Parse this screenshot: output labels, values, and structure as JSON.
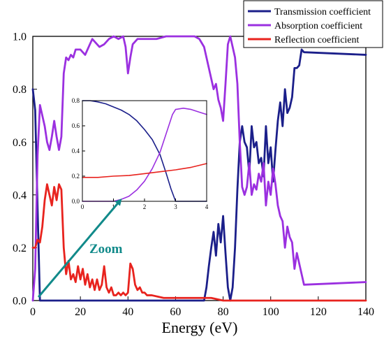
{
  "chart_data": [
    {
      "type": "line",
      "title": "",
      "xlabel": "Energy (eV)",
      "ylabel": "",
      "xlim": [
        0,
        140
      ],
      "ylim": [
        0,
        1.0
      ],
      "x_ticks": [
        0,
        20,
        40,
        60,
        80,
        100,
        120,
        140
      ],
      "y_ticks": [
        0.0,
        0.2,
        0.4,
        0.6,
        0.8,
        1.0
      ],
      "x_tick_labels": [
        "0",
        "20",
        "40",
        "60",
        "80",
        "100",
        "120",
        "140"
      ],
      "y_tick_labels": [
        "0.0",
        "0.2",
        "0.4",
        "0.6",
        "0.8",
        "1.0"
      ],
      "legend_position": "top-right",
      "grid": false,
      "series": [
        {
          "name": "Transmission coefficient",
          "color": "#1b1f8a",
          "points": [
            [
              0,
              0.8
            ],
            [
              1,
              0.72
            ],
            [
              2,
              0.35
            ],
            [
              3,
              0.0
            ],
            [
              10,
              0.0
            ],
            [
              20,
              0.0
            ],
            [
              40,
              0.0
            ],
            [
              60,
              0.0
            ],
            [
              72,
              0.0
            ],
            [
              73,
              0.05
            ],
            [
              74,
              0.13
            ],
            [
              75,
              0.2
            ],
            [
              76,
              0.26
            ],
            [
              77,
              0.17
            ],
            [
              78,
              0.29
            ],
            [
              79,
              0.22
            ],
            [
              80,
              0.32
            ],
            [
              81,
              0.18
            ],
            [
              82,
              0.05
            ],
            [
              83,
              0.0
            ],
            [
              84,
              0.05
            ],
            [
              85,
              0.2
            ],
            [
              86,
              0.42
            ],
            [
              87,
              0.6
            ],
            [
              88,
              0.66
            ],
            [
              89,
              0.6
            ],
            [
              90,
              0.58
            ],
            [
              91,
              0.48
            ],
            [
              92,
              0.66
            ],
            [
              93,
              0.58
            ],
            [
              94,
              0.6
            ],
            [
              95,
              0.52
            ],
            [
              96,
              0.54
            ],
            [
              97,
              0.47
            ],
            [
              98,
              0.66
            ],
            [
              99,
              0.52
            ],
            [
              100,
              0.58
            ],
            [
              101,
              0.45
            ],
            [
              102,
              0.57
            ],
            [
              103,
              0.68
            ],
            [
              104,
              0.75
            ],
            [
              105,
              0.66
            ],
            [
              106,
              0.8
            ],
            [
              107,
              0.71
            ],
            [
              108,
              0.73
            ],
            [
              109,
              0.77
            ],
            [
              110,
              0.88
            ],
            [
              111,
              0.88
            ],
            [
              112,
              0.89
            ],
            [
              113,
              0.95
            ],
            [
              114,
              0.94
            ],
            [
              140,
              0.93
            ]
          ]
        },
        {
          "name": "Absorption coefficient",
          "color": "#9b30e0",
          "points": [
            [
              0,
              0.0
            ],
            [
              1,
              0.12
            ],
            [
              2,
              0.55
            ],
            [
              3,
              0.74
            ],
            [
              4,
              0.7
            ],
            [
              5,
              0.66
            ],
            [
              6,
              0.6
            ],
            [
              7,
              0.57
            ],
            [
              8,
              0.62
            ],
            [
              9,
              0.68
            ],
            [
              10,
              0.62
            ],
            [
              11,
              0.57
            ],
            [
              12,
              0.62
            ],
            [
              13,
              0.86
            ],
            [
              14,
              0.92
            ],
            [
              15,
              0.91
            ],
            [
              16,
              0.93
            ],
            [
              17,
              0.92
            ],
            [
              18,
              0.95
            ],
            [
              20,
              0.95
            ],
            [
              22,
              0.93
            ],
            [
              24,
              0.97
            ],
            [
              25,
              0.99
            ],
            [
              26,
              0.98
            ],
            [
              28,
              0.96
            ],
            [
              30,
              0.97
            ],
            [
              32,
              0.99
            ],
            [
              34,
              1.0
            ],
            [
              36,
              0.99
            ],
            [
              38,
              1.0
            ],
            [
              39,
              0.96
            ],
            [
              40,
              0.86
            ],
            [
              41,
              0.92
            ],
            [
              42,
              0.97
            ],
            [
              44,
              0.99
            ],
            [
              48,
              0.99
            ],
            [
              52,
              0.99
            ],
            [
              56,
              1.0
            ],
            [
              60,
              1.0
            ],
            [
              64,
              1.0
            ],
            [
              68,
              1.0
            ],
            [
              70,
              0.99
            ],
            [
              72,
              0.96
            ],
            [
              73,
              0.92
            ],
            [
              74,
              0.88
            ],
            [
              75,
              0.84
            ],
            [
              76,
              0.8
            ],
            [
              77,
              0.82
            ],
            [
              78,
              0.76
            ],
            [
              79,
              0.73
            ],
            [
              80,
              0.68
            ],
            [
              81,
              0.82
            ],
            [
              82,
              0.97
            ],
            [
              83,
              1.0
            ],
            [
              84,
              0.96
            ],
            [
              85,
              0.92
            ],
            [
              86,
              0.82
            ],
            [
              87,
              0.6
            ],
            [
              88,
              0.43
            ],
            [
              89,
              0.4
            ],
            [
              90,
              0.43
            ],
            [
              91,
              0.52
            ],
            [
              92,
              0.4
            ],
            [
              93,
              0.44
            ],
            [
              94,
              0.42
            ],
            [
              95,
              0.48
            ],
            [
              96,
              0.45
            ],
            [
              97,
              0.52
            ],
            [
              98,
              0.36
            ],
            [
              99,
              0.45
            ],
            [
              100,
              0.4
            ],
            [
              101,
              0.5
            ],
            [
              102,
              0.44
            ],
            [
              103,
              0.36
            ],
            [
              104,
              0.32
            ],
            [
              105,
              0.3
            ],
            [
              106,
              0.2
            ],
            [
              107,
              0.28
            ],
            [
              108,
              0.24
            ],
            [
              109,
              0.22
            ],
            [
              110,
              0.12
            ],
            [
              111,
              0.18
            ],
            [
              112,
              0.14
            ],
            [
              113,
              0.1
            ],
            [
              114,
              0.06
            ],
            [
              140,
              0.07
            ]
          ]
        },
        {
          "name": "Reflection coefficient",
          "color": "#e8231e",
          "points": [
            [
              0,
              0.2
            ],
            [
              1,
              0.2
            ],
            [
              2,
              0.23
            ],
            [
              3,
              0.22
            ],
            [
              4,
              0.28
            ],
            [
              5,
              0.38
            ],
            [
              6,
              0.44
            ],
            [
              7,
              0.4
            ],
            [
              8,
              0.36
            ],
            [
              9,
              0.43
            ],
            [
              10,
              0.38
            ],
            [
              11,
              0.44
            ],
            [
              12,
              0.42
            ],
            [
              13,
              0.2
            ],
            [
              14,
              0.1
            ],
            [
              15,
              0.15
            ],
            [
              16,
              0.08
            ],
            [
              17,
              0.1
            ],
            [
              18,
              0.07
            ],
            [
              19,
              0.13
            ],
            [
              20,
              0.08
            ],
            [
              21,
              0.12
            ],
            [
              22,
              0.06
            ],
            [
              23,
              0.1
            ],
            [
              24,
              0.05
            ],
            [
              25,
              0.08
            ],
            [
              26,
              0.04
            ],
            [
              27,
              0.08
            ],
            [
              28,
              0.04
            ],
            [
              29,
              0.06
            ],
            [
              30,
              0.13
            ],
            [
              31,
              0.05
            ],
            [
              32,
              0.03
            ],
            [
              33,
              0.05
            ],
            [
              34,
              0.02
            ],
            [
              35,
              0.02
            ],
            [
              36,
              0.03
            ],
            [
              37,
              0.02
            ],
            [
              38,
              0.03
            ],
            [
              39,
              0.02
            ],
            [
              40,
              0.03
            ],
            [
              41,
              0.14
            ],
            [
              42,
              0.12
            ],
            [
              43,
              0.06
            ],
            [
              44,
              0.04
            ],
            [
              45,
              0.05
            ],
            [
              46,
              0.03
            ],
            [
              47,
              0.03
            ],
            [
              48,
              0.02
            ],
            [
              50,
              0.02
            ],
            [
              55,
              0.01
            ],
            [
              60,
              0.01
            ],
            [
              65,
              0.01
            ],
            [
              70,
              0.01
            ],
            [
              75,
              0.01
            ],
            [
              80,
              0.0
            ],
            [
              100,
              0.0
            ],
            [
              140,
              0.0
            ]
          ]
        }
      ]
    },
    {
      "type": "line",
      "title": "",
      "xlabel": "",
      "ylabel": "",
      "xlim": [
        0,
        4
      ],
      "ylim": [
        0,
        0.8
      ],
      "x_ticks": [
        0,
        1,
        2,
        3,
        4
      ],
      "y_ticks": [
        0.0,
        0.2,
        0.4,
        0.6,
        0.8
      ],
      "x_tick_labels": [
        "0",
        "1",
        "2",
        "3",
        "4"
      ],
      "y_tick_labels": [
        "0.0",
        "0.2",
        "0.4",
        "0.6",
        "0.8"
      ],
      "series": [
        {
          "color": "#1b1f8a",
          "points": [
            [
              0,
              0.8
            ],
            [
              0.25,
              0.8
            ],
            [
              0.5,
              0.79
            ],
            [
              0.75,
              0.775
            ],
            [
              1.0,
              0.75
            ],
            [
              1.25,
              0.725
            ],
            [
              1.5,
              0.69
            ],
            [
              1.75,
              0.64
            ],
            [
              2.0,
              0.57
            ],
            [
              2.25,
              0.49
            ],
            [
              2.5,
              0.37
            ],
            [
              2.7,
              0.22
            ],
            [
              2.85,
              0.1
            ],
            [
              3.0,
              0.0
            ],
            [
              4.0,
              0.0
            ]
          ]
        },
        {
          "color": "#9b30e0",
          "points": [
            [
              0,
              0.0
            ],
            [
              1.0,
              0.0
            ],
            [
              1.25,
              0.015
            ],
            [
              1.5,
              0.04
            ],
            [
              1.75,
              0.09
            ],
            [
              2.0,
              0.16
            ],
            [
              2.25,
              0.26
            ],
            [
              2.5,
              0.39
            ],
            [
              2.7,
              0.54
            ],
            [
              2.9,
              0.69
            ],
            [
              3.0,
              0.73
            ],
            [
              3.25,
              0.74
            ],
            [
              3.5,
              0.73
            ],
            [
              3.75,
              0.71
            ],
            [
              4.0,
              0.69
            ]
          ]
        },
        {
          "color": "#e8231e",
          "points": [
            [
              0,
              0.19
            ],
            [
              0.5,
              0.19
            ],
            [
              1.0,
              0.2
            ],
            [
              1.5,
              0.205
            ],
            [
              2.0,
              0.22
            ],
            [
              2.5,
              0.235
            ],
            [
              3.0,
              0.25
            ],
            [
              3.5,
              0.27
            ],
            [
              4.0,
              0.3
            ]
          ]
        }
      ]
    }
  ],
  "annotation": {
    "label": "Zoom",
    "color": "#118a8a"
  }
}
